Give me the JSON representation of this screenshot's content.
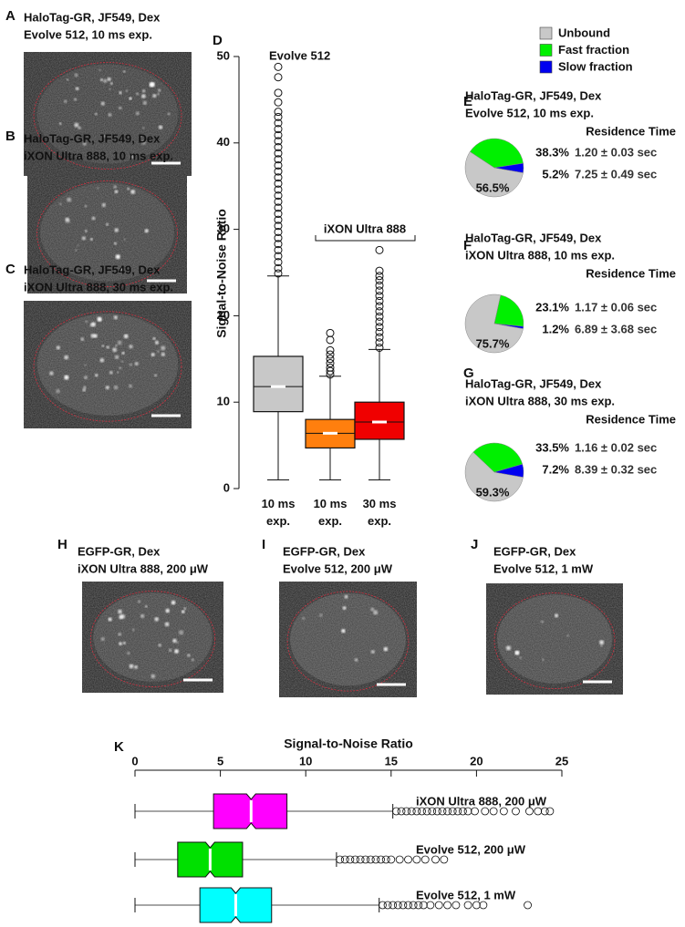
{
  "panels": [
    {
      "letter": "A",
      "lines": [
        "HaloTag-GR, JF549, Dex",
        "Evolve 512, 10 ms exp."
      ]
    },
    {
      "letter": "B",
      "lines": [
        "HaloTag-GR, JF549, Dex",
        "iXON Ultra 888, 10 ms exp."
      ]
    },
    {
      "letter": "C",
      "lines": [
        "HaloTag-GR, JF549, Dex",
        "iXON Ultra 888, 30 ms exp."
      ]
    },
    {
      "letter": "H",
      "lines": [
        "EGFP-GR, Dex",
        "iXON Ultra 888, 200 μW"
      ]
    },
    {
      "letter": "I",
      "lines": [
        "EGFP-GR, Dex",
        "Evolve 512, 200 μW"
      ]
    },
    {
      "letter": "J",
      "lines": [
        "EGFP-GR, Dex",
        "Evolve 512, 1 mW"
      ]
    }
  ],
  "legend": {
    "names": [
      "Unbound",
      "Fast fraction",
      "Slow fraction"
    ],
    "colors": [
      "#c8c8c8",
      "#00f000",
      "#0000f0"
    ]
  },
  "chart_data": [
    {
      "type": "box",
      "letter": "D",
      "title": "Evolve 512",
      "ylabel": "Signal-to-Noise Ratio",
      "annotation": "iXON Ultra 888",
      "ylim": [
        0,
        50
      ],
      "yticks": [
        0,
        10,
        20,
        30,
        40,
        50
      ],
      "categories": [
        "10 ms exp.",
        "10 ms exp.",
        "30 ms exp."
      ],
      "boxes": [
        {
          "color": "#c8c8c8",
          "whislo": 1,
          "q1": 8.9,
          "med": 11.8,
          "q3": 15.3,
          "whishi": 24.6,
          "fliers": [
            24.9,
            25.5,
            26.2,
            26.9,
            27.6,
            28.3,
            29.0,
            29.7,
            30.4,
            31.1,
            31.8,
            32.5,
            33.2,
            33.9,
            34.6,
            35.3,
            36.0,
            36.7,
            37.4,
            38.1,
            38.8,
            39.5,
            40.2,
            40.9,
            41.6,
            42.3,
            43.0,
            43.6,
            44.7,
            45.8,
            47.6,
            48.8
          ]
        },
        {
          "color": "#ff7f0e",
          "whislo": 1,
          "q1": 4.7,
          "med": 6.4,
          "q3": 8.0,
          "whishi": 13.0,
          "fliers": [
            13.2,
            13.6,
            14.0,
            14.5,
            15.0,
            15.5,
            16.0,
            17.2,
            18.0
          ]
        },
        {
          "color": "#f00000",
          "whislo": 1,
          "q1": 5.7,
          "med": 7.7,
          "q3": 10.0,
          "whishi": 16.1,
          "fliers": [
            16.3,
            16.9,
            17.5,
            18.1,
            18.7,
            19.3,
            19.9,
            20.5,
            21.1,
            21.7,
            22.3,
            22.9,
            23.5,
            24.1,
            24.6,
            25.2,
            27.6
          ]
        }
      ]
    },
    {
      "type": "pie",
      "letter": "E",
      "title_lines": [
        "HaloTag-GR, JF549, Dex",
        "Evolve 512, 10 ms exp."
      ],
      "column_header": "Residence Time",
      "values": [
        56.5,
        38.3,
        5.2
      ],
      "value_labels": [
        "56.5%",
        "38.3%",
        "5.2%"
      ],
      "residence_times": [
        null,
        "1.20 ± 0.03 sec",
        "7.25 ± 0.49 sec"
      ]
    },
    {
      "type": "pie",
      "letter": "F",
      "title_lines": [
        "HaloTag-GR, JF549, Dex",
        "iXON Ultra 888, 10 ms exp."
      ],
      "column_header": "Residence Time",
      "values": [
        75.7,
        23.1,
        1.2
      ],
      "value_labels": [
        "75.7%",
        "23.1%",
        "1.2%"
      ],
      "residence_times": [
        null,
        "1.17 ± 0.06 sec",
        "6.89 ± 3.68 sec"
      ]
    },
    {
      "type": "pie",
      "letter": "G",
      "title_lines": [
        "HaloTag-GR, JF549, Dex",
        "iXON Ultra 888, 30 ms exp."
      ],
      "column_header": "Residence Time",
      "values": [
        59.3,
        33.5,
        7.2
      ],
      "value_labels": [
        "59.3%",
        "33.5%",
        "7.2%"
      ],
      "residence_times": [
        null,
        "1.16 ± 0.02 sec",
        "8.39 ± 0.32 sec"
      ]
    },
    {
      "type": "hbox",
      "letter": "K",
      "xlabel": "Signal-to-Noise Ratio",
      "xlim": [
        0,
        25
      ],
      "xticks": [
        0,
        5,
        10,
        15,
        20,
        25
      ],
      "categories": [
        "iXON Ultra 888, 200 μW",
        "Evolve 512, 200 μW",
        "Evolve 512, 1 mW"
      ],
      "boxes": [
        {
          "color": "#ff00ff",
          "whislo": 0,
          "q1": 4.6,
          "med": 6.8,
          "q3": 8.9,
          "whishi": 15.1,
          "fliers": [
            15.3,
            15.6,
            15.9,
            16.2,
            16.5,
            16.8,
            17.1,
            17.4,
            17.7,
            18.0,
            18.3,
            18.6,
            18.9,
            19.2,
            19.5,
            19.9,
            20.5,
            21.0,
            21.6,
            22.3,
            23.1,
            23.6,
            24.0,
            24.3
          ]
        },
        {
          "color": "#00e000",
          "whislo": 0,
          "q1": 2.5,
          "med": 4.4,
          "q3": 6.3,
          "whishi": 11.8,
          "fliers": [
            12.0,
            12.3,
            12.6,
            12.9,
            13.2,
            13.5,
            13.8,
            14.1,
            14.4,
            14.7,
            15.0,
            15.5,
            16.0,
            16.5,
            17.0,
            17.6,
            18.1
          ]
        },
        {
          "color": "#00ffff",
          "whislo": 0,
          "q1": 3.8,
          "med": 5.9,
          "q3": 8.0,
          "whishi": 14.3,
          "fliers": [
            14.5,
            14.8,
            15.1,
            15.4,
            15.7,
            16.0,
            16.3,
            16.6,
            16.9,
            17.3,
            17.8,
            18.3,
            18.8,
            19.5,
            20.0,
            20.4,
            23.0
          ]
        }
      ]
    }
  ]
}
